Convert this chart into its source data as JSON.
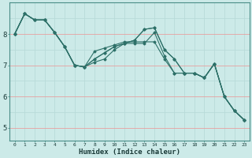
{
  "xlabel": "Humidex (Indice chaleur)",
  "background_color": "#cceae8",
  "grid_color_minor": "#b8dbd9",
  "grid_color_red": "#e8a0a0",
  "line_color": "#2d7068",
  "xlim": [
    -0.5,
    23.5
  ],
  "ylim": [
    4.6,
    9.0
  ],
  "yticks": [
    5,
    6,
    7,
    8
  ],
  "xticks": [
    0,
    1,
    2,
    3,
    4,
    5,
    6,
    7,
    8,
    9,
    10,
    11,
    12,
    13,
    14,
    15,
    16,
    17,
    18,
    19,
    20,
    21,
    22,
    23
  ],
  "lines": [
    [
      8.0,
      8.65,
      8.45,
      8.45,
      8.05,
      7.6,
      7.0,
      6.95,
      7.45,
      7.55,
      7.65,
      7.75,
      7.75,
      7.75,
      7.75,
      7.2,
      6.75,
      6.75,
      6.75,
      6.6,
      7.05,
      6.0,
      5.55,
      5.25
    ],
    [
      8.0,
      8.65,
      8.45,
      8.45,
      8.05,
      7.6,
      7.0,
      6.95,
      7.1,
      7.2,
      7.5,
      7.7,
      7.7,
      7.7,
      8.05,
      7.3,
      6.75,
      6.75,
      6.75,
      6.6,
      7.05,
      6.0,
      5.55,
      5.25
    ],
    [
      8.0,
      8.65,
      8.45,
      8.45,
      8.05,
      7.6,
      7.0,
      6.95,
      7.2,
      7.4,
      7.6,
      7.7,
      7.8,
      8.15,
      8.2,
      7.5,
      7.2,
      6.75,
      6.75,
      6.6,
      7.05,
      6.0,
      5.55,
      5.25
    ],
    [
      8.0,
      8.65,
      8.45,
      8.45,
      8.05,
      7.6,
      7.0,
      6.95,
      7.2,
      7.4,
      7.6,
      7.7,
      7.8,
      8.15,
      8.2,
      7.5,
      7.2,
      6.75,
      6.75,
      6.6,
      7.05,
      6.0,
      5.55,
      5.25
    ]
  ]
}
